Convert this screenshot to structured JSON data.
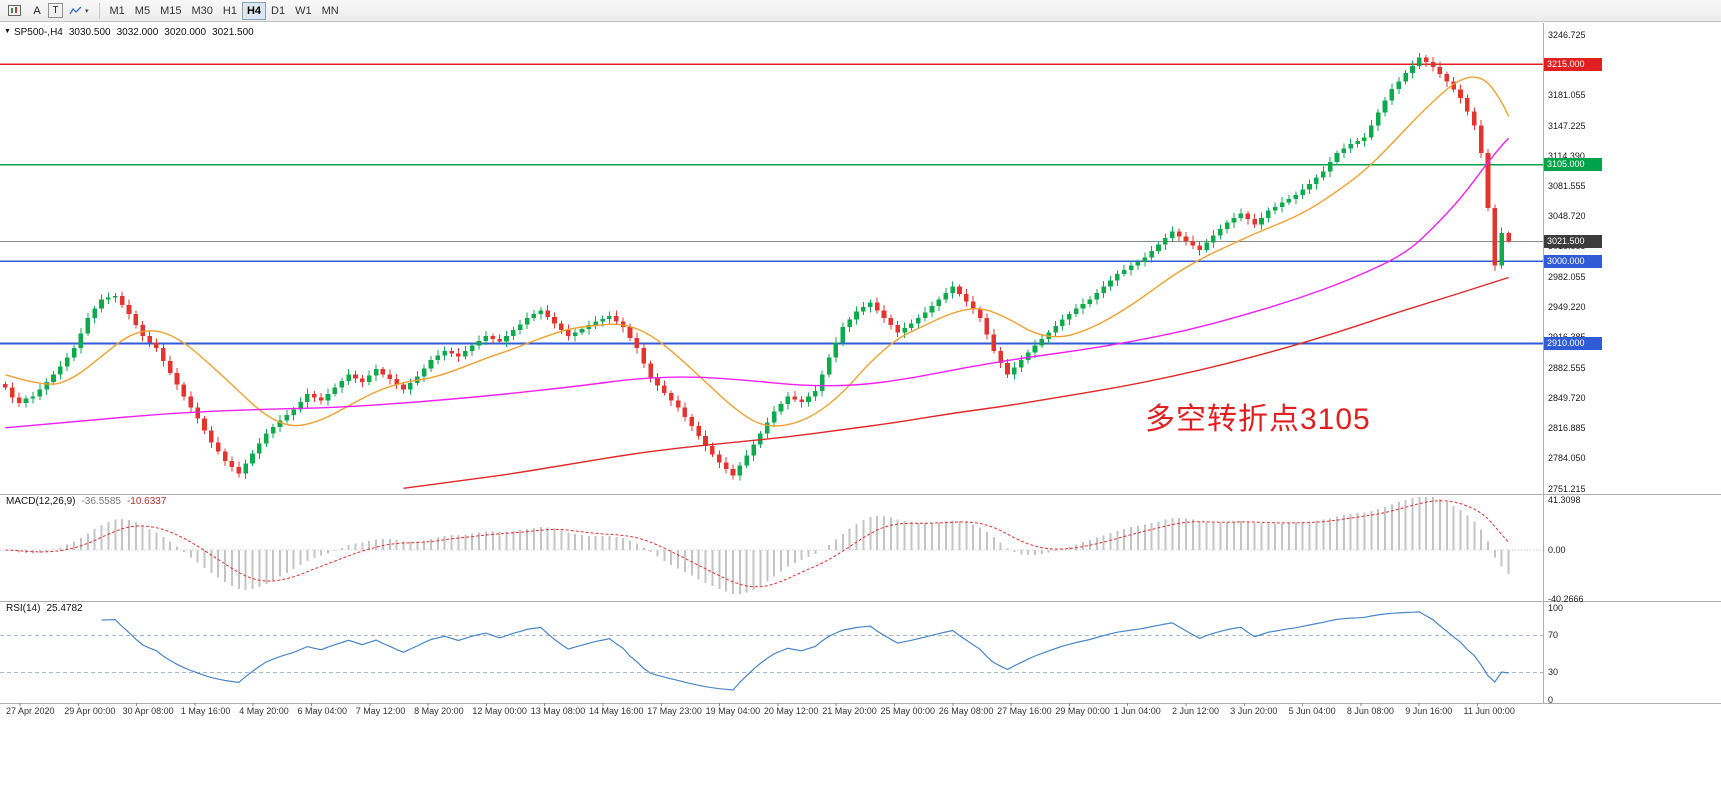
{
  "toolbar": {
    "arrow_label": "A",
    "text_label": "T",
    "caret": "▾",
    "timeframes": [
      "M1",
      "M5",
      "M15",
      "M30",
      "H1",
      "H4",
      "D1",
      "W1",
      "MN"
    ],
    "active_timeframe": "H4"
  },
  "chart": {
    "header": {
      "marker": "▼",
      "symbol": "SP500-,H4",
      "open": "3030.500",
      "high": "3032.000",
      "low": "3020.000",
      "close": "3021.500"
    },
    "colors": {
      "candle_up": "#0fa94e",
      "candle_down": "#e3342f",
      "ma_fast": "#f0a030",
      "ma_mid": "#f020f0",
      "ma_slow": "#e02828",
      "line_red": "#e02020",
      "line_green": "#00a24a",
      "line_blue": "#2f5bd7",
      "line_current": "#8a8a8a",
      "macd_hist": "#c4c4c4",
      "macd_signal": "#e03030",
      "rsi_line": "#4a86c8",
      "rsi_level": "#a8b8cc",
      "annotation": "#e02020"
    },
    "time_axis": {
      "labels": [
        "27 Apr 2020",
        "29 Apr 00:00",
        "30 Apr 08:00",
        "1 May 16:00",
        "4 May 20:00",
        "6 May 04:00",
        "7 May 12:00",
        "8 May 20:00",
        "12 May 00:00",
        "13 May 08:00",
        "14 May 16:00",
        "17 May 23:00",
        "19 May 04:00",
        "20 May 12:00",
        "21 May 20:00",
        "25 May 00:00",
        "26 May 08:00",
        "27 May 16:00",
        "29 May 00:00",
        "1 Jun 04:00",
        "2 Jun 12:00",
        "3 Jun 20:00",
        "5 Jun 04:00",
        "8 Jun 08:00",
        "9 Jun 16:00",
        "11 Jun 00:00"
      ]
    }
  },
  "chart_data": {
    "type": "candlestick",
    "symbol": "SP500-",
    "timeframe": "H4",
    "last_ohlc": {
      "open": 3030.5,
      "high": 3032.0,
      "low": 3020.0,
      "close": 3021.5
    },
    "price_axis": {
      "ticks": [
        3246.725,
        3181.055,
        3147.225,
        3114.39,
        3081.555,
        3048.72,
        3015.885,
        2982.055,
        2949.22,
        2916.385,
        2882.555,
        2849.72,
        2816.885,
        2784.05,
        2751.215
      ]
    },
    "level_lines": [
      {
        "price": 3215.0,
        "label": "3215.000",
        "color": "#e02020",
        "kind": "resistance"
      },
      {
        "price": 3105.0,
        "label": "3105.000",
        "color": "#00a24a",
        "kind": "pivot"
      },
      {
        "price": 3021.5,
        "label": "3021.500",
        "color": "#8a8a8a",
        "kind": "current",
        "tag_bg": "#3c3c3c"
      },
      {
        "price": 3000.0,
        "label": "3000.000",
        "color": "#2f5bd7",
        "kind": "support"
      },
      {
        "price": 2910.0,
        "label": "2910.000",
        "color": "#2f5bd7",
        "kind": "support"
      }
    ],
    "closes": [
      2862,
      2851,
      2845,
      2850,
      2852,
      2860,
      2868,
      2876,
      2885,
      2895,
      2905,
      2921,
      2938,
      2948,
      2958,
      2960,
      2962,
      2952,
      2942,
      2930,
      2918,
      2911,
      2905,
      2891,
      2878,
      2865,
      2852,
      2840,
      2828,
      2815,
      2802,
      2792,
      2782,
      2775,
      2768,
      2779,
      2790,
      2801,
      2812,
      2819,
      2826,
      2832,
      2838,
      2846,
      2855,
      2851,
      2848,
      2855,
      2862,
      2869,
      2876,
      2872,
      2868,
      2875,
      2882,
      2876,
      2871,
      2865,
      2860,
      2867,
      2874,
      2883,
      2892,
      2897,
      2902,
      2899,
      2896,
      2902,
      2908,
      2913,
      2918,
      2915,
      2912,
      2918,
      2925,
      2931,
      2938,
      2942,
      2946,
      2939,
      2932,
      2925,
      2918,
      2922,
      2926,
      2930,
      2934,
      2937,
      2940,
      2934,
      2928,
      2916,
      2905,
      2888,
      2872,
      2864,
      2856,
      2848,
      2840,
      2830,
      2820,
      2809,
      2798,
      2789,
      2780,
      2773,
      2766,
      2777,
      2788,
      2800,
      2812,
      2824,
      2836,
      2844,
      2852,
      2849,
      2846,
      2852,
      2858,
      2876,
      2895,
      2911,
      2928,
      2936,
      2945,
      2950,
      2955,
      2946,
      2938,
      2930,
      2922,
      2927,
      2932,
      2938,
      2944,
      2951,
      2958,
      2965,
      2972,
      2964,
      2956,
      2947,
      2938,
      2920,
      2902,
      2889,
      2876,
      2884,
      2892,
      2900,
      2908,
      2915,
      2922,
      2929,
      2936,
      2942,
      2948,
      2953,
      2958,
      2965,
      2972,
      2979,
      2986,
      2990,
      2995,
      2999,
      3004,
      3011,
      3018,
      3025,
      3032,
      3027,
      3022,
      3017,
      3012,
      3020,
      3028,
      3035,
      3042,
      3047,
      3052,
      3046,
      3040,
      3047,
      3055,
      3059,
      3064,
      3068,
      3072,
      3078,
      3084,
      3091,
      3098,
      3108,
      3118,
      3123,
      3128,
      3131,
      3135,
      3148,
      3162,
      3175,
      3188,
      3196,
      3205,
      3213,
      3222,
      3217,
      3212,
      3204,
      3196,
      3187,
      3178,
      3163,
      3148,
      3118,
      3058,
      2995,
      3030.5,
      3021.5
    ],
    "moving_averages": [
      {
        "name": "fast",
        "color": "#f0a030",
        "points": [
          [
            0,
            2876
          ],
          [
            6,
            2862
          ],
          [
            10,
            2872
          ],
          [
            14,
            2896
          ],
          [
            18,
            2920
          ],
          [
            22,
            2926
          ],
          [
            26,
            2912
          ],
          [
            30,
            2886
          ],
          [
            34,
            2858
          ],
          [
            38,
            2830
          ],
          [
            42,
            2818
          ],
          [
            46,
            2826
          ],
          [
            50,
            2842
          ],
          [
            54,
            2858
          ],
          [
            58,
            2868
          ],
          [
            62,
            2872
          ],
          [
            66,
            2882
          ],
          [
            70,
            2894
          ],
          [
            74,
            2904
          ],
          [
            78,
            2916
          ],
          [
            82,
            2926
          ],
          [
            86,
            2930
          ],
          [
            90,
            2932
          ],
          [
            94,
            2920
          ],
          [
            98,
            2896
          ],
          [
            102,
            2868
          ],
          [
            106,
            2840
          ],
          [
            110,
            2820
          ],
          [
            114,
            2820
          ],
          [
            118,
            2832
          ],
          [
            122,
            2856
          ],
          [
            126,
            2890
          ],
          [
            130,
            2916
          ],
          [
            134,
            2930
          ],
          [
            138,
            2944
          ],
          [
            142,
            2950
          ],
          [
            146,
            2938
          ],
          [
            150,
            2920
          ],
          [
            154,
            2916
          ],
          [
            158,
            2926
          ],
          [
            162,
            2942
          ],
          [
            166,
            2962
          ],
          [
            170,
            2984
          ],
          [
            174,
            3002
          ],
          [
            178,
            3016
          ],
          [
            182,
            3030
          ],
          [
            186,
            3042
          ],
          [
            190,
            3056
          ],
          [
            194,
            3076
          ],
          [
            198,
            3098
          ],
          [
            202,
            3128
          ],
          [
            206,
            3160
          ],
          [
            210,
            3188
          ],
          [
            212,
            3198
          ],
          [
            214,
            3202
          ],
          [
            216,
            3196
          ],
          [
            218,
            3174
          ],
          [
            219,
            3158
          ]
        ]
      },
      {
        "name": "mid",
        "color": "#f020f0",
        "points": [
          [
            0,
            2818
          ],
          [
            12,
            2826
          ],
          [
            24,
            2834
          ],
          [
            36,
            2838
          ],
          [
            48,
            2840
          ],
          [
            60,
            2846
          ],
          [
            72,
            2854
          ],
          [
            84,
            2864
          ],
          [
            92,
            2872
          ],
          [
            100,
            2874
          ],
          [
            108,
            2870
          ],
          [
            116,
            2864
          ],
          [
            124,
            2864
          ],
          [
            132,
            2872
          ],
          [
            140,
            2884
          ],
          [
            148,
            2894
          ],
          [
            156,
            2902
          ],
          [
            164,
            2912
          ],
          [
            172,
            2924
          ],
          [
            180,
            2940
          ],
          [
            188,
            2958
          ],
          [
            196,
            2980
          ],
          [
            204,
            3008
          ],
          [
            208,
            3036
          ],
          [
            212,
            3068
          ],
          [
            216,
            3108
          ],
          [
            218,
            3126
          ],
          [
            219,
            3134
          ]
        ]
      },
      {
        "name": "slow",
        "color": "#e02828",
        "points": [
          [
            58,
            2752
          ],
          [
            66,
            2760
          ],
          [
            74,
            2768
          ],
          [
            82,
            2778
          ],
          [
            90,
            2788
          ],
          [
            98,
            2796
          ],
          [
            106,
            2802
          ],
          [
            114,
            2808
          ],
          [
            122,
            2816
          ],
          [
            130,
            2824
          ],
          [
            138,
            2834
          ],
          [
            146,
            2842
          ],
          [
            154,
            2852
          ],
          [
            162,
            2862
          ],
          [
            170,
            2874
          ],
          [
            178,
            2888
          ],
          [
            186,
            2904
          ],
          [
            194,
            2922
          ],
          [
            202,
            2942
          ],
          [
            208,
            2956
          ],
          [
            214,
            2970
          ],
          [
            219,
            2982
          ]
        ]
      }
    ],
    "macd": {
      "label": "MACD(12,26,9)",
      "main_value": "-36.5585",
      "signal_value": "-10.6337",
      "fast": 12,
      "slow": 26,
      "signal": 9,
      "axis": [
        41.3098,
        0.0,
        -40.2666
      ],
      "axis_labels": [
        "41.3098",
        "0.00",
        "-40.2666"
      ]
    },
    "rsi": {
      "label": "RSI(14)",
      "value": "25.4782",
      "period": 14,
      "levels": [
        100,
        70,
        30,
        0
      ],
      "level_labels": [
        "100",
        "70",
        "30",
        "0"
      ]
    },
    "annotation": {
      "text": "多空转折点3105",
      "color": "#e02020"
    }
  }
}
